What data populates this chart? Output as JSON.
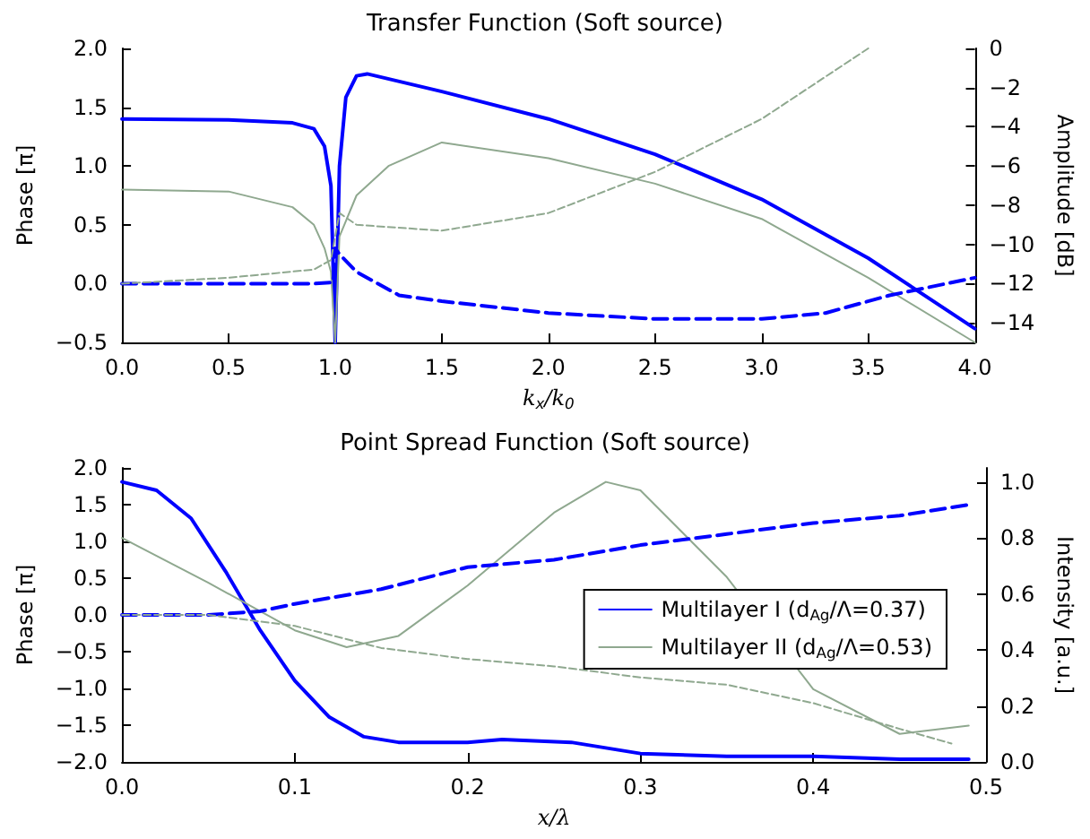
{
  "chart_data": [
    {
      "type": "line",
      "title": "Transfer Function (Soft source)",
      "xlabel": "k$_{x}$/k$_{0}$",
      "ylabel": "Phase [π]",
      "y2label": "Amplitude [dB]",
      "xlim": [
        0,
        4
      ],
      "xticks": [
        {
          "value": 0,
          "label": "0.0"
        },
        {
          "value": 0.5,
          "label": "0.5"
        },
        {
          "value": 1,
          "label": "1.0"
        },
        {
          "value": 1.5,
          "label": "1.5"
        },
        {
          "value": 2,
          "label": "2.0"
        },
        {
          "value": 2.5,
          "label": "2.5"
        },
        {
          "value": 3,
          "label": "3.0"
        },
        {
          "value": 3.5,
          "label": "3.5"
        },
        {
          "value": 4,
          "label": "4.0"
        }
      ],
      "ylim": [
        -0.5,
        2
      ],
      "yticks": [
        {
          "value": -0.5,
          "label": "−0.5"
        },
        {
          "value": 0,
          "label": "0.0"
        },
        {
          "value": 0.5,
          "label": "0.5"
        },
        {
          "value": 1,
          "label": "1.0"
        },
        {
          "value": 1.5,
          "label": "1.5"
        },
        {
          "value": 2,
          "label": "2.0"
        }
      ],
      "y2lim": [
        -15,
        0
      ],
      "y2ticks": [
        {
          "value": -14,
          "label": "−14"
        },
        {
          "value": -12,
          "label": "−12"
        },
        {
          "value": -10,
          "label": "−10"
        },
        {
          "value": -8,
          "label": "−8"
        },
        {
          "value": -6,
          "label": "−6"
        },
        {
          "value": -4,
          "label": "−4"
        },
        {
          "value": -2,
          "label": "−2"
        },
        0
      ],
      "grid": false,
      "legend": false,
      "marker": "none",
      "series": [
        {
          "color": "#0000ff",
          "axis": "y2",
          "line_style": "solid",
          "x": [
            0,
            0.5,
            0.8,
            0.9,
            0.95,
            0.98,
            1.0,
            1.02,
            1.05,
            1.1,
            1.15,
            1.5,
            2.0,
            2.5,
            3.0,
            3.5,
            4.0
          ],
          "values": [
            -3.6,
            -3.65,
            -3.8,
            -4.1,
            -5,
            -7,
            -15,
            -6,
            -2.5,
            -1.4,
            -1.3,
            -2.2,
            -3.6,
            -5.4,
            -7.7,
            -10.7,
            -14.3
          ]
        },
        {
          "color": "#8fa88f",
          "axis": "y2",
          "line_style": "solid",
          "x": [
            0,
            0.5,
            0.8,
            0.9,
            0.95,
            0.98,
            1.0,
            1.02,
            1.1,
            1.25,
            1.5,
            2.0,
            2.5,
            3.0,
            3.5,
            4.0
          ],
          "values": [
            -7.2,
            -7.3,
            -8.1,
            -9,
            -10.2,
            -11.4,
            -15,
            -9.6,
            -7.5,
            -6,
            -4.8,
            -5.6,
            -6.9,
            -8.7,
            -11.7,
            -15
          ]
        },
        {
          "color": "#0000ff",
          "axis": "y",
          "line_style": "dashed",
          "x": [
            0,
            0.9,
            0.99,
            1.0,
            1.02,
            1.1,
            1.3,
            1.5,
            2.0,
            2.5,
            3.0,
            3.3,
            3.6,
            4.0
          ],
          "values": [
            0,
            0,
            0.01,
            0.3,
            0.25,
            0.1,
            -0.1,
            -0.15,
            -0.25,
            -0.3,
            -0.3,
            -0.25,
            -0.1,
            0.05
          ]
        },
        {
          "color": "#8fa88f",
          "axis": "y",
          "line_style": "dashed",
          "x": [
            0,
            0.5,
            0.9,
            0.98,
            1.0,
            1.02,
            1.1,
            1.5,
            2.0,
            2.5,
            3.0,
            3.5
          ],
          "values": [
            0,
            0.05,
            0.12,
            0.2,
            0.4,
            0.6,
            0.5,
            0.45,
            0.6,
            0.95,
            1.4,
            2.0
          ]
        }
      ]
    },
    {
      "type": "line",
      "title": "Point Spread Function (Soft source)",
      "xlabel": "x/λ",
      "ylabel": "Phase [π]",
      "y2label": "Intensity [a.u.]",
      "xlim": [
        0,
        0.5
      ],
      "xticks": [
        {
          "value": 0,
          "label": "0.0"
        },
        0.1,
        0.2,
        0.3,
        0.4,
        0.5
      ],
      "ylim": [
        -2,
        2
      ],
      "yticks": [
        {
          "value": -2,
          "label": "−2.0"
        },
        {
          "value": -1.5,
          "label": "−1.5"
        },
        {
          "value": -1,
          "label": "−1.0"
        },
        {
          "value": -0.5,
          "label": "−0.5"
        },
        {
          "value": 0,
          "label": "0.0"
        },
        {
          "value": 0.5,
          "label": "0.5"
        },
        {
          "value": 1,
          "label": "1.0"
        },
        {
          "value": 1.5,
          "label": "1.5"
        },
        {
          "value": 2,
          "label": "2.0"
        }
      ],
      "y2lim": [
        0,
        1.05
      ],
      "y2ticks": [
        {
          "value": 0,
          "label": "0.0"
        },
        0.2,
        0.4,
        0.6,
        0.8,
        {
          "value": 1,
          "label": "1.0"
        }
      ],
      "grid": false,
      "legend": "right",
      "marker": "none",
      "series": [
        {
          "name": "Multilayer I (d$_{Ag}$/Λ=0.37)",
          "color": "#0000ff",
          "axis": "y2",
          "line_style": "solid",
          "x": [
            0,
            0.02,
            0.04,
            0.06,
            0.08,
            0.1,
            0.12,
            0.14,
            0.16,
            0.2,
            0.22,
            0.26,
            0.3,
            0.35,
            0.4,
            0.45,
            0.49
          ],
          "values": [
            1.0,
            0.97,
            0.87,
            0.68,
            0.47,
            0.29,
            0.16,
            0.09,
            0.07,
            0.07,
            0.08,
            0.07,
            0.03,
            0.02,
            0.02,
            0.01,
            0.01
          ]
        },
        {
          "name": "Multilayer II (d$_{Ag}$/Λ=0.53)",
          "color": "#8fa88f",
          "axis": "y2",
          "line_style": "solid",
          "x": [
            0,
            0.05,
            0.1,
            0.13,
            0.16,
            0.2,
            0.25,
            0.28,
            0.3,
            0.35,
            0.4,
            0.45,
            0.49
          ],
          "values": [
            0.8,
            0.64,
            0.47,
            0.41,
            0.45,
            0.63,
            0.89,
            1.0,
            0.97,
            0.66,
            0.26,
            0.1,
            0.13
          ]
        },
        {
          "color": "#0000ff",
          "axis": "y",
          "line_style": "dashed",
          "x": [
            0,
            0.05,
            0.08,
            0.1,
            0.15,
            0.2,
            0.25,
            0.3,
            0.35,
            0.4,
            0.45,
            0.49
          ],
          "values": [
            0,
            0,
            0.05,
            0.15,
            0.35,
            0.65,
            0.75,
            0.95,
            1.1,
            1.25,
            1.35,
            1.5
          ]
        },
        {
          "color": "#8fa88f",
          "axis": "y",
          "line_style": "dashed",
          "x": [
            0,
            0.05,
            0.1,
            0.15,
            0.2,
            0.25,
            0.3,
            0.35,
            0.4,
            0.45,
            0.48
          ],
          "values": [
            0,
            0,
            -0.15,
            -0.45,
            -0.6,
            -0.7,
            -0.85,
            -0.95,
            -1.2,
            -1.55,
            -1.75
          ]
        }
      ]
    }
  ]
}
